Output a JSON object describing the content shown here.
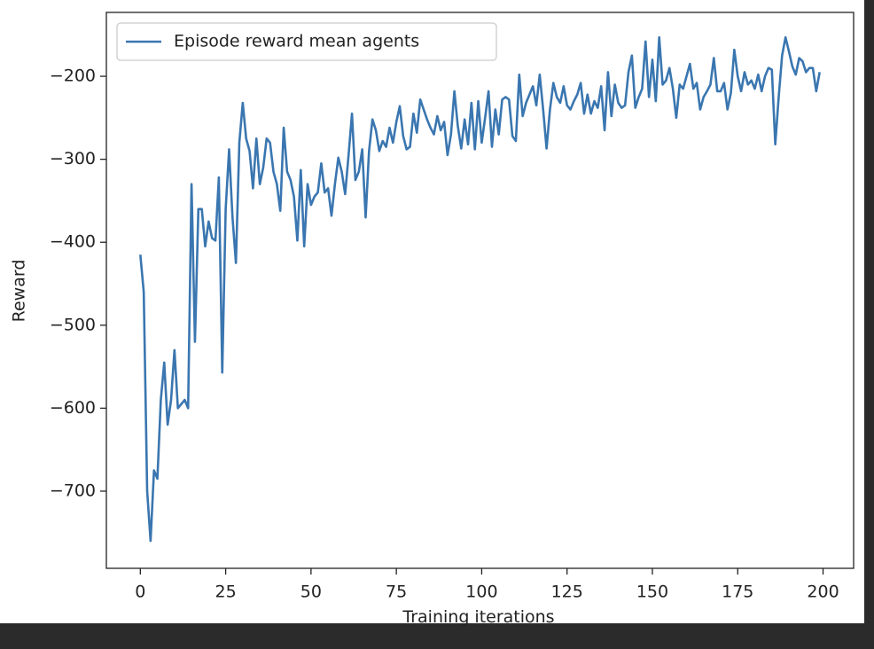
{
  "chart_data": {
    "type": "line",
    "xlabel": "Training iterations",
    "ylabel": "Reward",
    "legend": "upper left",
    "xlim": [
      -9.95,
      208.95
    ],
    "ylim": [
      -793,
      -123
    ],
    "xticks": [
      0,
      25,
      50,
      75,
      100,
      125,
      150,
      175,
      200
    ],
    "yticks": [
      {
        "value": -700,
        "label": "−700"
      },
      {
        "value": -600,
        "label": "−600"
      },
      {
        "value": -500,
        "label": "−500"
      },
      {
        "value": -400,
        "label": "−400"
      },
      {
        "value": -300,
        "label": "−300"
      },
      {
        "value": -200,
        "label": "−200"
      }
    ],
    "x": [
      0,
      1,
      2,
      3,
      4,
      5,
      6,
      7,
      8,
      9,
      10,
      11,
      12,
      13,
      14,
      15,
      16,
      17,
      18,
      19,
      20,
      21,
      22,
      23,
      24,
      25,
      26,
      27,
      28,
      29,
      30,
      31,
      32,
      33,
      34,
      35,
      36,
      37,
      38,
      39,
      40,
      41,
      42,
      43,
      44,
      45,
      46,
      47,
      48,
      49,
      50,
      51,
      52,
      53,
      54,
      55,
      56,
      57,
      58,
      59,
      60,
      61,
      62,
      63,
      64,
      65,
      66,
      67,
      68,
      69,
      70,
      71,
      72,
      73,
      74,
      75,
      76,
      77,
      78,
      79,
      80,
      81,
      82,
      83,
      84,
      85,
      86,
      87,
      88,
      89,
      90,
      91,
      92,
      93,
      94,
      95,
      96,
      97,
      98,
      99,
      100,
      101,
      102,
      103,
      104,
      105,
      106,
      107,
      108,
      109,
      110,
      111,
      112,
      113,
      114,
      115,
      116,
      117,
      118,
      119,
      120,
      121,
      122,
      123,
      124,
      125,
      126,
      127,
      128,
      129,
      130,
      131,
      132,
      133,
      134,
      135,
      136,
      137,
      138,
      139,
      140,
      141,
      142,
      143,
      144,
      145,
      146,
      147,
      148,
      149,
      150,
      151,
      152,
      153,
      154,
      155,
      156,
      157,
      158,
      159,
      160,
      161,
      162,
      163,
      164,
      165,
      166,
      167,
      168,
      169,
      170,
      171,
      172,
      173,
      174,
      175,
      176,
      177,
      178,
      179,
      180,
      181,
      182,
      183,
      184,
      185,
      186,
      187,
      188,
      189,
      190,
      191,
      192,
      193,
      194,
      195,
      196,
      197,
      198,
      199
    ],
    "series": [
      {
        "name": "Episode reward mean agents",
        "color": "#3a76b0",
        "values": [
          -415,
          -460,
          -700,
          -760,
          -675,
          -685,
          -590,
          -545,
          -620,
          -590,
          -530,
          -600,
          -595,
          -590,
          -600,
          -330,
          -520,
          -360,
          -360,
          -405,
          -375,
          -395,
          -398,
          -322,
          -557,
          -360,
          -288,
          -370,
          -425,
          -280,
          -232,
          -275,
          -290,
          -335,
          -275,
          -330,
          -310,
          -275,
          -280,
          -315,
          -330,
          -362,
          -262,
          -315,
          -325,
          -345,
          -398,
          -313,
          -405,
          -330,
          -355,
          -345,
          -340,
          -305,
          -340,
          -335,
          -368,
          -330,
          -298,
          -315,
          -342,
          -295,
          -245,
          -325,
          -315,
          -288,
          -370,
          -290,
          -252,
          -265,
          -290,
          -278,
          -285,
          -262,
          -280,
          -255,
          -236,
          -272,
          -288,
          -285,
          -245,
          -268,
          -228,
          -240,
          -252,
          -262,
          -270,
          -248,
          -265,
          -255,
          -295,
          -270,
          -218,
          -260,
          -287,
          -252,
          -282,
          -232,
          -288,
          -230,
          -280,
          -250,
          -218,
          -285,
          -240,
          -270,
          -228,
          -225,
          -228,
          -272,
          -278,
          -198,
          -248,
          -232,
          -222,
          -212,
          -235,
          -198,
          -240,
          -287,
          -240,
          -208,
          -225,
          -232,
          -212,
          -235,
          -240,
          -230,
          -222,
          -208,
          -245,
          -222,
          -245,
          -230,
          -238,
          -212,
          -265,
          -195,
          -248,
          -210,
          -232,
          -238,
          -235,
          -195,
          -175,
          -238,
          -225,
          -215,
          -158,
          -225,
          -180,
          -230,
          -153,
          -210,
          -205,
          -190,
          -215,
          -250,
          -210,
          -215,
          -200,
          -185,
          -215,
          -208,
          -240,
          -225,
          -218,
          -210,
          -178,
          -218,
          -218,
          -208,
          -240,
          -220,
          -168,
          -200,
          -218,
          -195,
          -210,
          -205,
          -215,
          -198,
          -218,
          -200,
          -190,
          -192,
          -282,
          -225,
          -175,
          -153,
          -170,
          -188,
          -198,
          -178,
          -182,
          -195,
          -190,
          -190,
          -218,
          -195
        ]
      }
    ]
  }
}
